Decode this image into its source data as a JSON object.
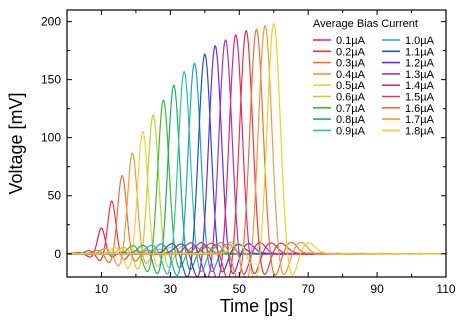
{
  "chart_data": {
    "type": "line",
    "xlabel": "Time  [ps]",
    "ylabel": "Voltage  [mV]",
    "xlim": [
      0,
      110
    ],
    "ylim": [
      -20,
      210
    ],
    "xticks": [
      10,
      30,
      50,
      70,
      90,
      110
    ],
    "yticks": [
      0,
      50,
      100,
      150,
      200
    ],
    "grid": false,
    "legend": {
      "title": "Average Bias Current",
      "placement": "top-right",
      "columns": 2
    },
    "series": [
      {
        "name": "0.1µA",
        "color": "#e6197a",
        "peak_x": 10.0,
        "peak_y": 22
      },
      {
        "name": "0.2µA",
        "color": "#f0353a",
        "peak_x": 13.0,
        "peak_y": 45
      },
      {
        "name": "0.3µA",
        "color": "#ee7038",
        "peak_x": 16.0,
        "peak_y": 68
      },
      {
        "name": "0.4µA",
        "color": "#f09a40",
        "peak_x": 19.0,
        "peak_y": 87
      },
      {
        "name": "0.5µA",
        "color": "#f3d23a",
        "peak_x": 22.0,
        "peak_y": 105
      },
      {
        "name": "0.6µA",
        "color": "#b8d631",
        "peak_x": 25.0,
        "peak_y": 120
      },
      {
        "name": "0.7µA",
        "color": "#3fba37",
        "peak_x": 28.0,
        "peak_y": 133
      },
      {
        "name": "0.8µA",
        "color": "#1fb05a",
        "peak_x": 31.0,
        "peak_y": 145
      },
      {
        "name": "0.9µA",
        "color": "#2ec2a8",
        "peak_x": 34.0,
        "peak_y": 157
      },
      {
        "name": "1.0µA",
        "color": "#1aa3d6",
        "peak_x": 37.0,
        "peak_y": 165
      },
      {
        "name": "1.1µA",
        "color": "#2350c8",
        "peak_x": 40.0,
        "peak_y": 172
      },
      {
        "name": "1.2µA",
        "color": "#6a2fd0",
        "peak_x": 43.0,
        "peak_y": 179
      },
      {
        "name": "1.3µA",
        "color": "#a533c9",
        "peak_x": 46.0,
        "peak_y": 185
      },
      {
        "name": "1.4µA",
        "color": "#e0287a",
        "peak_x": 49.0,
        "peak_y": 189
      },
      {
        "name": "1.5µA",
        "color": "#f0353a",
        "peak_x": 52.0,
        "peak_y": 192
      },
      {
        "name": "1.6µA",
        "color": "#ee7038",
        "peak_x": 55.0,
        "peak_y": 194
      },
      {
        "name": "1.7µA",
        "color": "#f09a40",
        "peak_x": 57.5,
        "peak_y": 197
      },
      {
        "name": "1.8µA",
        "color": "#e8d22a",
        "peak_x": 60.0,
        "peak_y": 198
      }
    ]
  }
}
